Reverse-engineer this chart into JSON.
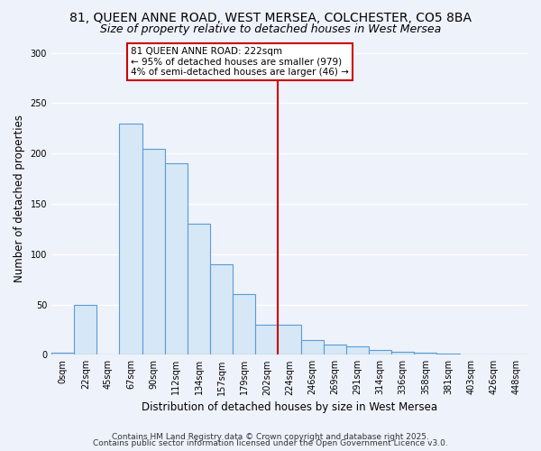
{
  "title": "81, QUEEN ANNE ROAD, WEST MERSEA, COLCHESTER, CO5 8BA",
  "subtitle": "Size of property relative to detached houses in West Mersea",
  "xlabel": "Distribution of detached houses by size in West Mersea",
  "ylabel": "Number of detached properties",
  "bar_labels": [
    "0sqm",
    "22sqm",
    "45sqm",
    "67sqm",
    "90sqm",
    "112sqm",
    "134sqm",
    "157sqm",
    "179sqm",
    "202sqm",
    "224sqm",
    "246sqm",
    "269sqm",
    "291sqm",
    "314sqm",
    "336sqm",
    "358sqm",
    "381sqm",
    "403sqm",
    "426sqm",
    "448sqm"
  ],
  "bar_heights": [
    2,
    50,
    0,
    230,
    205,
    190,
    130,
    90,
    60,
    30,
    30,
    15,
    10,
    8,
    5,
    3,
    2,
    1,
    0,
    0,
    0
  ],
  "bar_color": "#d6e8f5",
  "bar_edge_color": "#5b9bd5",
  "vline_index": 10,
  "vline_color": "#cc0000",
  "annotation_title": "81 QUEEN ANNE ROAD: 222sqm",
  "annotation_line1": "← 95% of detached houses are smaller (979)",
  "annotation_line2": "4% of semi-detached houses are larger (46) →",
  "annotation_box_color": "#ffffff",
  "annotation_border_color": "#cc0000",
  "ylim": [
    0,
    310
  ],
  "yticks": [
    0,
    50,
    100,
    150,
    200,
    250,
    300
  ],
  "footer1": "Contains HM Land Registry data © Crown copyright and database right 2025.",
  "footer2": "Contains public sector information licensed under the Open Government Licence v3.0.",
  "background_color": "#eef2fb",
  "grid_color": "#ffffff",
  "title_fontsize": 10,
  "subtitle_fontsize": 9,
  "axis_label_fontsize": 8.5,
  "tick_fontsize": 7,
  "footer_fontsize": 6.5
}
